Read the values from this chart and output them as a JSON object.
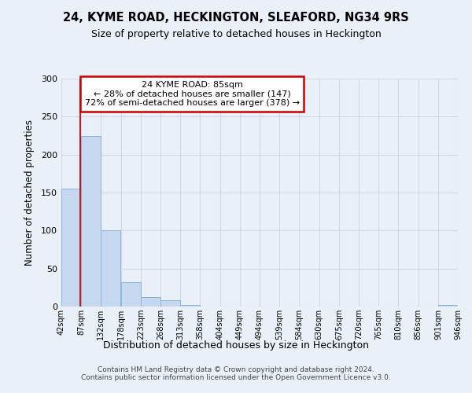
{
  "title": "24, KYME ROAD, HECKINGTON, SLEAFORD, NG34 9RS",
  "subtitle": "Size of property relative to detached houses in Heckington",
  "xlabel": "Distribution of detached houses by size in Heckington",
  "ylabel": "Number of detached properties",
  "annotation_line1": "24 KYME ROAD: 85sqm",
  "annotation_line2": "← 28% of detached houses are smaller (147)",
  "annotation_line3": "72% of semi-detached houses are larger (378) →",
  "property_size": 85,
  "bin_edges": [
    42,
    87,
    132,
    178,
    223,
    268,
    313,
    358,
    404,
    449,
    494,
    539,
    584,
    630,
    675,
    720,
    765,
    810,
    856,
    901,
    946
  ],
  "bar_values": [
    155,
    225,
    100,
    32,
    12,
    8,
    2,
    0,
    0,
    0,
    0,
    0,
    0,
    0,
    0,
    0,
    0,
    0,
    0,
    2
  ],
  "bar_color": "#c5d8f0",
  "bar_edge_color": "#8ab4d8",
  "annotation_box_color": "#ffffff",
  "annotation_box_edge": "#cc0000",
  "vline_color": "#cc0000",
  "grid_color": "#d0d8e8",
  "background_color": "#eaf0f8",
  "ylim": [
    0,
    300
  ],
  "yticks": [
    0,
    50,
    100,
    150,
    200,
    250,
    300
  ],
  "footer_line1": "Contains HM Land Registry data © Crown copyright and database right 2024.",
  "footer_line2": "Contains public sector information licensed under the Open Government Licence v3.0."
}
